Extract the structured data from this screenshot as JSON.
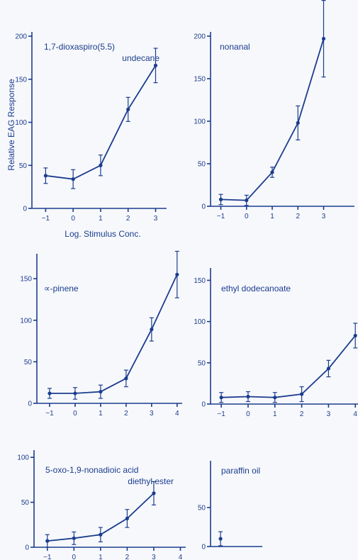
{
  "chart_data": [
    {
      "type": "line",
      "title": [
        "1,7-dioxaspiro(5.5)",
        "undecane"
      ],
      "ylabel": "Relative EAG Response",
      "xlabel": "Log. Stimulus Conc.",
      "xlim": [
        -1.5,
        3.4
      ],
      "ylim": [
        0,
        205
      ],
      "xticks": [
        -1,
        0,
        1,
        2,
        3
      ],
      "yticks": [
        0,
        50,
        100,
        150,
        200
      ],
      "x": [
        -1,
        0,
        1,
        2,
        3
      ],
      "values": [
        38,
        34,
        50,
        115,
        166
      ],
      "error": [
        9,
        11,
        12,
        14,
        20
      ],
      "colors": {
        "ink": "#1b3d8f"
      }
    },
    {
      "type": "line",
      "title": [
        "nonanal"
      ],
      "ylabel": "",
      "xlabel": "",
      "xlim": [
        -1.4,
        4.2
      ],
      "ylim": [
        0,
        205
      ],
      "xticks": [
        -1,
        0,
        1,
        2,
        3
      ],
      "yticks": [
        0,
        50,
        100,
        150,
        200
      ],
      "x": [
        -1,
        0,
        1,
        2,
        3
      ],
      "values": [
        8,
        7,
        40,
        98,
        197
      ],
      "error": [
        6,
        6,
        6,
        20,
        45
      ],
      "colors": {
        "ink": "#1b3d8f"
      }
    },
    {
      "type": "line",
      "title": [
        "∝-pinene"
      ],
      "ylabel": "",
      "xlabel": "",
      "xlim": [
        -1.5,
        4.2
      ],
      "ylim": [
        0,
        180
      ],
      "xticks": [
        -1,
        0,
        1,
        2,
        3,
        4
      ],
      "yticks": [
        0,
        50,
        100,
        150
      ],
      "x": [
        -1,
        0,
        1,
        2,
        3,
        4
      ],
      "values": [
        12,
        12,
        14,
        30,
        89,
        155
      ],
      "error": [
        6,
        7,
        8,
        10,
        14,
        28
      ],
      "colors": {
        "ink": "#1b3d8f"
      }
    },
    {
      "type": "line",
      "title": [
        "ethyl dodecanoate"
      ],
      "ylabel": "",
      "xlabel": "",
      "xlim": [
        -1.4,
        4.1
      ],
      "ylim": [
        0,
        165
      ],
      "xticks": [
        -1,
        0,
        1,
        2,
        3,
        4
      ],
      "yticks": [
        0,
        50,
        100,
        150
      ],
      "x": [
        -1,
        0,
        1,
        2,
        3,
        4
      ],
      "values": [
        8,
        9,
        8,
        12,
        43,
        83
      ],
      "error": [
        6,
        6,
        6,
        9,
        10,
        15
      ],
      "colors": {
        "ink": "#1b3d8f"
      }
    },
    {
      "type": "line",
      "title": [
        "5-oxo-1,9-nonadioic acid",
        "diethyl ester"
      ],
      "ylabel": "",
      "xlabel": "",
      "xlim": [
        -1.5,
        4.2
      ],
      "ylim": [
        0,
        108
      ],
      "xticks": [
        -1,
        0,
        1,
        2,
        3,
        4
      ],
      "yticks": [
        0,
        50,
        100
      ],
      "x": [
        -1,
        0,
        1,
        2,
        3
      ],
      "values": [
        7,
        10,
        14,
        32,
        60
      ],
      "error": [
        7,
        7,
        8,
        10,
        13
      ],
      "colors": {
        "ink": "#1b3d8f"
      }
    },
    {
      "type": "scatter",
      "title": [
        "paraffin oil"
      ],
      "ylabel": "",
      "xlabel": "",
      "xlim": [
        -1.1,
        4.6
      ],
      "ylim": [
        0,
        110
      ],
      "xticks": [],
      "yticks": [
        0,
        50
      ],
      "x": [
        0
      ],
      "values": [
        10
      ],
      "error": [
        9
      ],
      "colors": {
        "ink": "#1b3d8f"
      }
    }
  ]
}
